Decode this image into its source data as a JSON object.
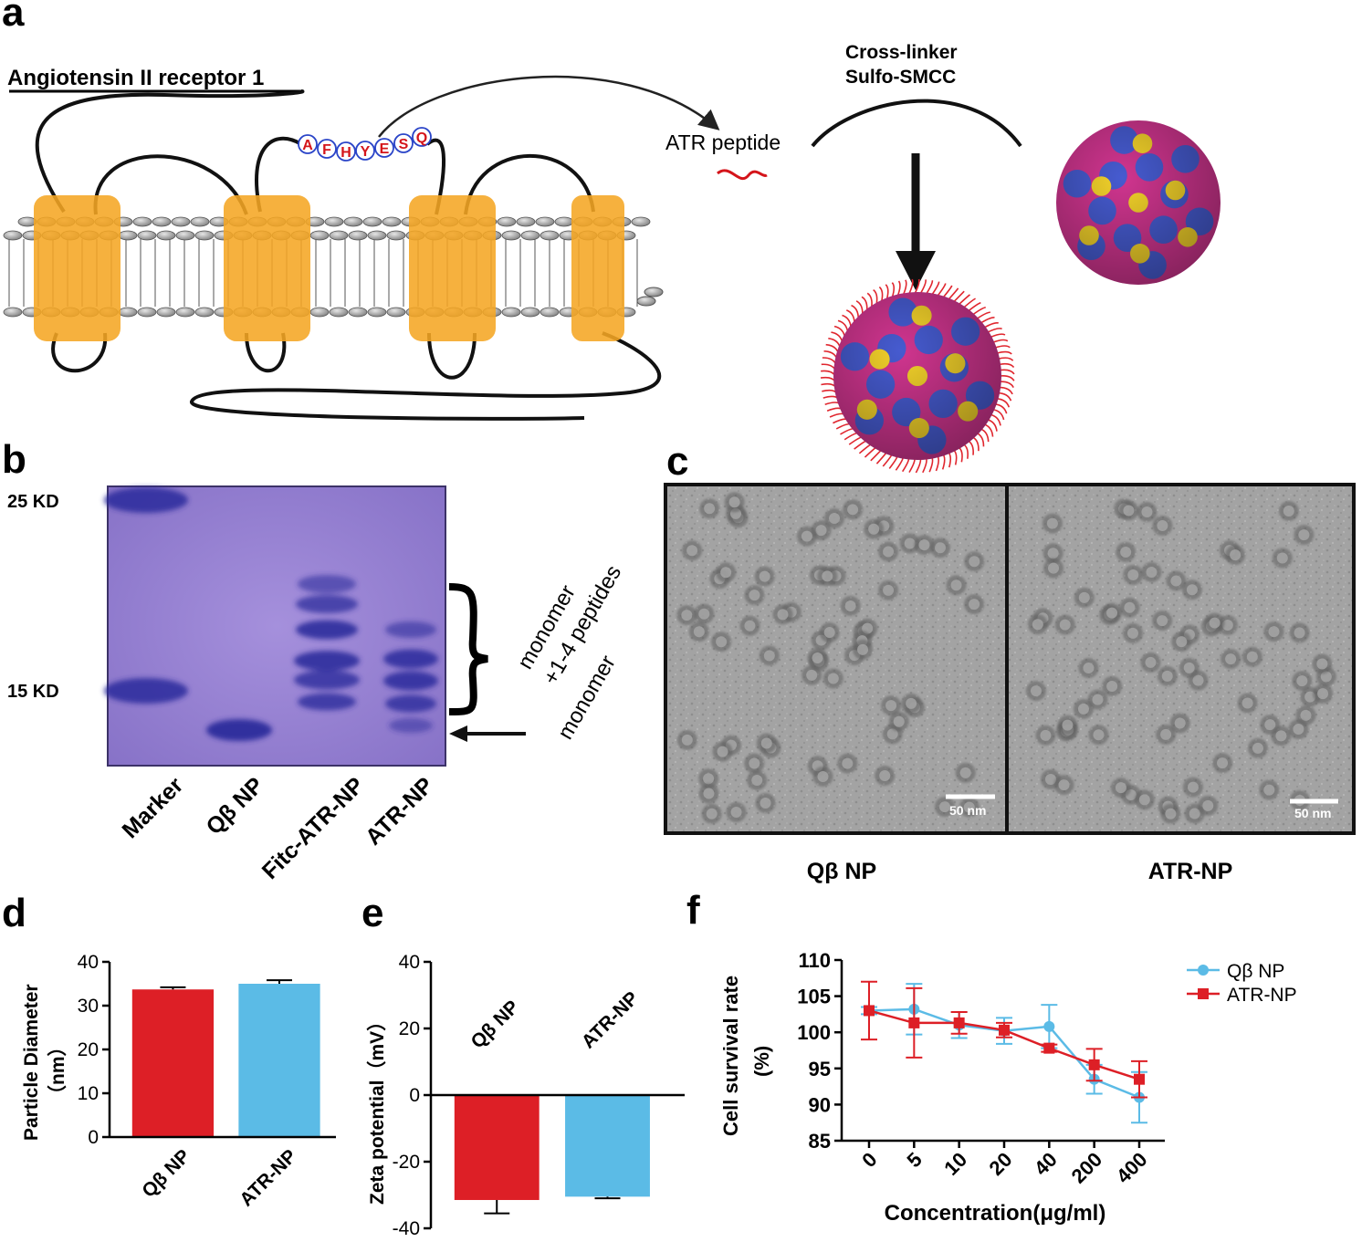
{
  "panels": {
    "a": "a",
    "b": "b",
    "c": "c",
    "d": "d",
    "e": "e",
    "f": "f"
  },
  "panel_a": {
    "receptor_title": "Angiotensin II receptor 1",
    "peptide_residues": [
      "A",
      "F",
      "H",
      "Y",
      "E",
      "S",
      "Q"
    ],
    "peptide_label": "ATR  peptide",
    "crosslinker_line1": "Cross-linker",
    "crosslinker_line2": "Sulfo-SMCC"
  },
  "panel_b": {
    "marker_25": "25 KD",
    "marker_15": "15 KD",
    "lanes": [
      "Marker",
      "Qβ NP",
      "Fitc-ATR-NP",
      "ATR-NP"
    ],
    "bracket_label_line1": "monomer",
    "bracket_label_line2": "+1-4 peptides",
    "arrow_label": "monomer"
  },
  "panel_c": {
    "left_label": "Qβ NP",
    "right_label": "ATR-NP",
    "scale_bar": "50 nm"
  },
  "colors": {
    "qb": "#dd1f26",
    "atr": "#5bbbe6",
    "membrane": "#f5a623"
  },
  "chart_data": [
    {
      "panel": "d",
      "type": "bar",
      "ylabel_line1": "Particle Diameter",
      "ylabel_line2": "（nm）",
      "categories": [
        "Qβ NP",
        "ATR-NP"
      ],
      "values": [
        33.7,
        35.0
      ],
      "errors": [
        0.5,
        0.8
      ],
      "ylim": [
        0,
        40
      ],
      "yticks": [
        0,
        10,
        20,
        30,
        40
      ]
    },
    {
      "panel": "e",
      "type": "bar",
      "ylabel": "Zeta potential（mV）",
      "categories": [
        "Qβ NP",
        "ATR-NP"
      ],
      "values": [
        -31.5,
        -30.5
      ],
      "errors": [
        4.0,
        0.5
      ],
      "ylim": [
        -40,
        40
      ],
      "yticks": [
        -40,
        -20,
        0,
        20,
        40
      ]
    },
    {
      "panel": "f",
      "type": "line",
      "ylabel_line1": "Cell survival rate",
      "ylabel_line2": "(%)",
      "xlabel": "Concentration(μg/ml)",
      "categories": [
        "0",
        "5",
        "10",
        "20",
        "40",
        "200",
        "400"
      ],
      "ylim": [
        85,
        110
      ],
      "yticks": [
        85,
        90,
        95,
        100,
        105,
        110
      ],
      "legend": "top-right",
      "series": [
        {
          "name": "Qβ  NP",
          "marker": "circle",
          "values": [
            103.0,
            103.2,
            101.0,
            100.2,
            100.8,
            93.5,
            91.0
          ],
          "errors": [
            0.5,
            3.5,
            1.8,
            1.8,
            3.0,
            2.0,
            3.5
          ]
        },
        {
          "name": "ATR-NP",
          "marker": "square",
          "values": [
            103.0,
            101.3,
            101.3,
            100.3,
            97.8,
            95.5,
            93.5
          ],
          "errors": [
            4.0,
            4.8,
            1.5,
            1.0,
            0.5,
            2.2,
            2.5
          ]
        }
      ]
    }
  ]
}
